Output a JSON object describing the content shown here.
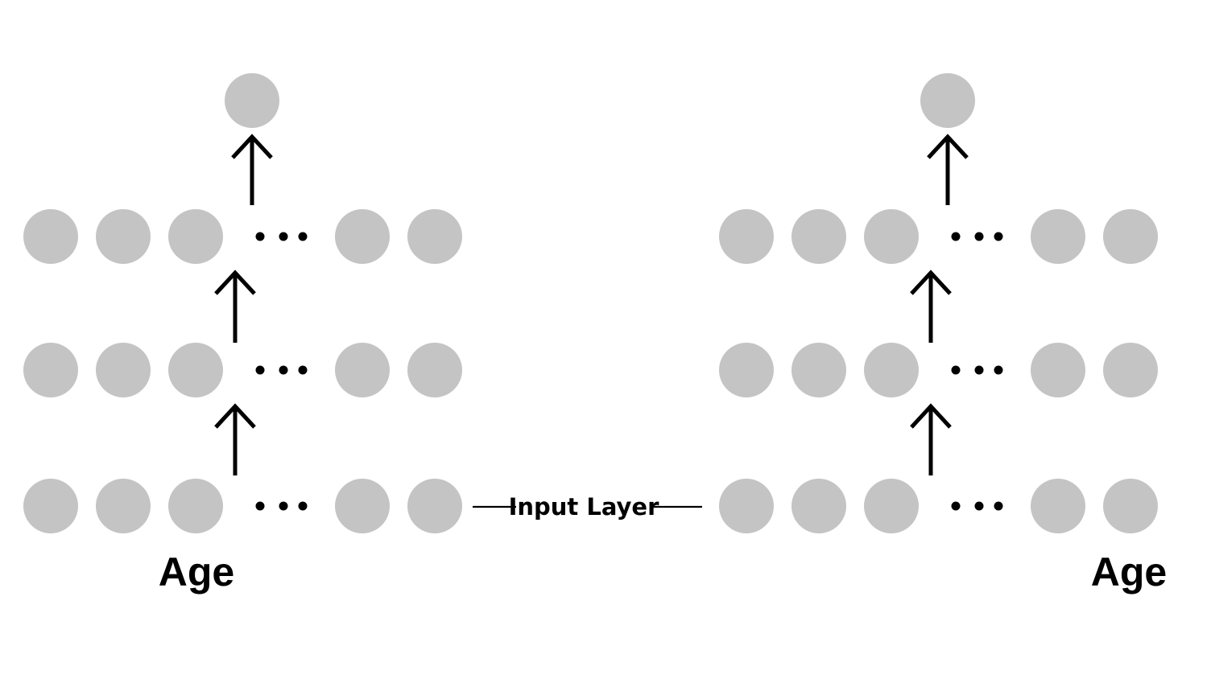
{
  "diagram": {
    "connector": {
      "label": "Input Layer"
    },
    "networks": [
      {
        "id": "left",
        "caption": "Age"
      },
      {
        "id": "right",
        "caption": "Age"
      }
    ]
  },
  "colors": {
    "node": "#c4c4c4",
    "stroke": "#000000",
    "background": "#ffffff"
  }
}
